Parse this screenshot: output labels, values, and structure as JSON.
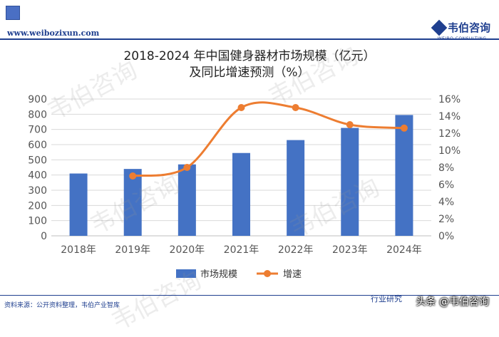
{
  "header": {
    "url": "www.weibozixun.com",
    "brand_name": "韦伯咨询",
    "brand_sub": "WEIBO CONSULTING"
  },
  "watermark": "韦伯咨询",
  "footer": {
    "source": "资料来源：公开资料整理，韦伯产业智库",
    "right_text": "行业研究",
    "platform": "头条 @韦伯咨询"
  },
  "colors": {
    "bar": "#4472c4",
    "line": "#ed7d31",
    "brand": "#1f3f8f"
  },
  "chart_data": {
    "type": "bar",
    "title_line1": "2018-2024 年中国健身器材市场规模（亿元）",
    "title_line2": "及同比增速预测（%）",
    "categories": [
      "2018年",
      "2019年",
      "2020年",
      "2021年",
      "2022年",
      "2023年",
      "2024年"
    ],
    "series": [
      {
        "name": "市场规模",
        "type": "bar",
        "axis": "left",
        "values": [
          410,
          440,
          470,
          545,
          630,
          710,
          795
        ]
      },
      {
        "name": "增速",
        "type": "line",
        "axis": "right",
        "smooth": true,
        "values": [
          null,
          7.0,
          8.0,
          15.0,
          15.0,
          13.0,
          12.6
        ]
      }
    ],
    "y_left": {
      "min": 0,
      "max": 900,
      "step": 100,
      "ticks": [
        "0",
        "100",
        "200",
        "300",
        "400",
        "500",
        "600",
        "700",
        "800",
        "900"
      ]
    },
    "y_right": {
      "min": 0,
      "max": 16,
      "step": 2,
      "ticks": [
        "0%",
        "2%",
        "4%",
        "6%",
        "8%",
        "10%",
        "12%",
        "14%",
        "16%"
      ]
    },
    "grid": true,
    "legend": "bottom"
  }
}
